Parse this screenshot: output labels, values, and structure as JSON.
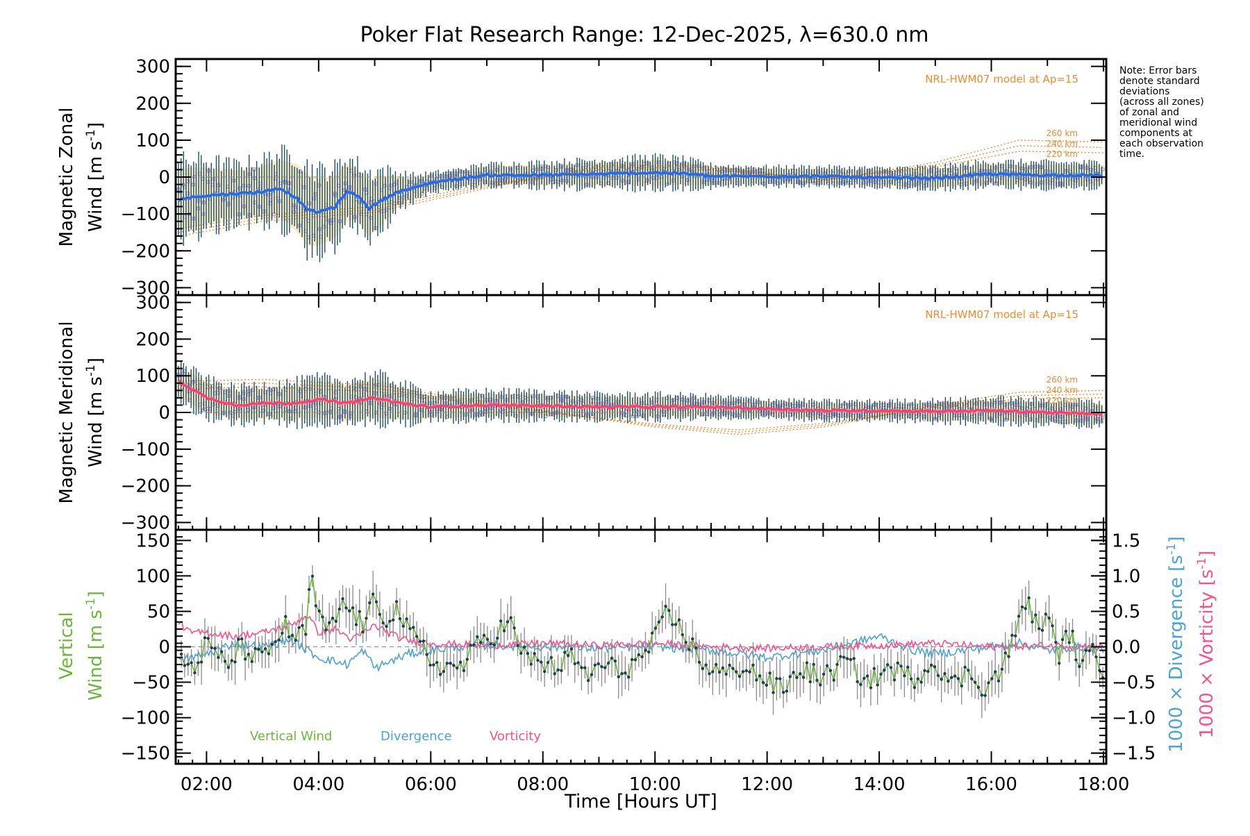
{
  "title": "Poker Flat Research Range: 12-Dec-2025, λ=630.0 nm",
  "note": [
    "Note: Error bars",
    "denote standard",
    "deviations",
    "(across all zones)",
    "of zonal and",
    "meridional wind",
    "components at",
    "each observation",
    "time."
  ],
  "colors": {
    "zonal": "#2a68e8",
    "zonal_light": "#4aa0d8",
    "meridional": "#ff3f6c",
    "hwm": "#f08a2a",
    "scatter": "#a89fd8",
    "errbar": "#1f4f5e",
    "vertical": "#6ab83a",
    "divergence": "#4aa3d6",
    "vorticity": "#ff4f88",
    "band": "#f5e3b8"
  },
  "chart_data": [
    {
      "type": "line",
      "name": "zonal-panel",
      "ylabel": [
        "Magnetic Zonal",
        "Wind [m s",
        "-1",
        "]"
      ],
      "ylim": [
        -320,
        320
      ],
      "xlim": [
        1.45,
        18.05
      ],
      "yticks": [
        300,
        200,
        100,
        0,
        -100,
        -200,
        -300
      ],
      "ytick_labels": [
        "300",
        "200",
        "100",
        "0",
        "−100",
        "−200",
        "−300"
      ],
      "model_label": "NRL-HWM07 model at Ap=15",
      "height_labels": [
        "260 km",
        "240 km",
        "220 km"
      ],
      "series": {
        "name": "Magnetic Zonal Wind",
        "x": [
          1.5,
          2.0,
          2.5,
          3.0,
          3.3,
          3.6,
          3.8,
          4.0,
          4.3,
          4.5,
          4.7,
          4.9,
          5.1,
          5.4,
          5.7,
          6.0,
          6.5,
          7.0,
          8.0,
          9.0,
          10.0,
          10.5,
          11.0,
          12.0,
          13.0,
          14.0,
          15.0,
          16.0,
          17.0,
          18.0
        ],
        "y": [
          -60,
          -50,
          -45,
          -40,
          -30,
          -55,
          -90,
          -95,
          -80,
          -40,
          -50,
          -85,
          -65,
          -40,
          -30,
          -15,
          -5,
          5,
          5,
          8,
          12,
          10,
          2,
          2,
          2,
          -2,
          -3,
          8,
          5,
          5
        ],
        "err": [
          120,
          110,
          90,
          100,
          110,
          130,
          140,
          130,
          120,
          110,
          100,
          110,
          100,
          60,
          40,
          30,
          30,
          35,
          40,
          45,
          50,
          45,
          35,
          30,
          30,
          30,
          35,
          40,
          40,
          40
        ]
      },
      "hwm_curves": [
        {
          "label": "260 km",
          "x": [
            1.5,
            3,
            5,
            7,
            9,
            11,
            13,
            15,
            16.5,
            18
          ],
          "y": [
            -160,
            -120,
            -95,
            -30,
            30,
            30,
            -10,
            40,
            100,
            95
          ]
        },
        {
          "label": "240 km",
          "x": [
            1.5,
            3,
            5,
            7,
            9,
            11,
            13,
            15,
            16.5,
            18
          ],
          "y": [
            -150,
            -112,
            -88,
            -25,
            25,
            25,
            -8,
            33,
            85,
            80
          ]
        },
        {
          "label": "220 km",
          "x": [
            1.5,
            3,
            5,
            7,
            9,
            11,
            13,
            15,
            16.5,
            18
          ],
          "y": [
            -140,
            -104,
            -80,
            -20,
            20,
            20,
            -6,
            27,
            70,
            66
          ]
        }
      ]
    },
    {
      "type": "line",
      "name": "meridional-panel",
      "ylabel": [
        "Magnetic Meridional",
        "Wind [m s",
        "-1",
        "]"
      ],
      "ylim": [
        -320,
        320
      ],
      "xlim": [
        1.45,
        18.05
      ],
      "yticks": [
        300,
        200,
        100,
        0,
        -100,
        -200,
        -300
      ],
      "ytick_labels": [
        "300",
        "200",
        "100",
        "0",
        "−100",
        "−200",
        "−300"
      ],
      "model_label": "NRL-HWM07 model at Ap=15",
      "height_labels": [
        "260 km",
        "240 km",
        "220 km"
      ],
      "series": {
        "name": "Magnetic Meridional Wind",
        "x": [
          1.5,
          2.0,
          2.5,
          3.0,
          3.5,
          4.0,
          4.5,
          5.0,
          5.3,
          5.7,
          6.0,
          7.0,
          8.0,
          9.0,
          10.0,
          11.0,
          12.0,
          13.0,
          14.0,
          15.0,
          16.0,
          17.0,
          18.0
        ],
        "y": [
          85,
          40,
          20,
          25,
          25,
          35,
          25,
          40,
          30,
          20,
          15,
          20,
          18,
          15,
          15,
          15,
          10,
          5,
          5,
          3,
          5,
          0,
          -5
        ],
        "err": [
          60,
          60,
          55,
          60,
          65,
          70,
          70,
          75,
          70,
          55,
          45,
          45,
          45,
          40,
          40,
          35,
          30,
          30,
          30,
          35,
          40,
          40,
          40
        ]
      },
      "hwm_curves": [
        {
          "label": "260 km",
          "x": [
            1.5,
            3,
            5,
            6.5,
            8,
            10,
            11.5,
            13,
            15,
            16.5,
            18
          ],
          "y": [
            85,
            90,
            75,
            40,
            5,
            -40,
            -60,
            -40,
            20,
            55,
            60
          ]
        },
        {
          "label": "240 km",
          "x": [
            1.5,
            3,
            5,
            6.5,
            8,
            10,
            11.5,
            13,
            15,
            16.5,
            18
          ],
          "y": [
            75,
            80,
            66,
            35,
            3,
            -36,
            -54,
            -35,
            16,
            46,
            50
          ]
        },
        {
          "label": "220 km",
          "x": [
            1.5,
            3,
            5,
            6.5,
            8,
            10,
            11.5,
            13,
            15,
            16.5,
            18
          ],
          "y": [
            65,
            70,
            57,
            30,
            1,
            -32,
            -48,
            -30,
            12,
            37,
            40
          ]
        }
      ]
    },
    {
      "type": "line",
      "name": "vertical-panel",
      "ylabel_green": [
        "Vertical",
        "Wind [m s",
        "-1",
        "]"
      ],
      "ylabel_right_blue": [
        "1000 × Divergence [s",
        "-1",
        "]"
      ],
      "ylabel_right_pink": [
        "1000 × Vorticity [s",
        "-1",
        "]"
      ],
      "ylim": [
        -165,
        165
      ],
      "yticks": [
        150,
        100,
        50,
        0,
        -50,
        -100,
        -150
      ],
      "ytick_labels": [
        "150",
        "100",
        "50",
        "0",
        "−50",
        "−100",
        "−150"
      ],
      "y2lim": [
        -1.65,
        1.65
      ],
      "y2ticks": [
        1.5,
        1.0,
        0.5,
        0.0,
        -0.5,
        -1.0,
        -1.5
      ],
      "y2tick_labels": [
        "1.5",
        "1.0",
        "0.5",
        "0.0",
        "−0.5",
        "−1.0",
        "−1.5"
      ],
      "xlim": [
        1.45,
        18.05
      ],
      "xticks": [
        2,
        4,
        6,
        8,
        10,
        12,
        14,
        16,
        18
      ],
      "xtick_labels": [
        "02:00",
        "04:00",
        "06:00",
        "08:00",
        "10:00",
        "12:00",
        "14:00",
        "16:00",
        "18:00"
      ],
      "xlabel": "Time [Hours UT]",
      "legend": [
        "Vertical Wind",
        "Divergence",
        "Vorticity"
      ],
      "vertical_wind": {
        "x": [
          1.6,
          1.8,
          2.0,
          2.2,
          2.4,
          2.6,
          2.8,
          3.0,
          3.2,
          3.4,
          3.6,
          3.8,
          3.85,
          4.0,
          4.2,
          4.4,
          4.6,
          4.8,
          5.0,
          5.2,
          5.4,
          5.6,
          5.8,
          6.0,
          6.3,
          6.6,
          6.9,
          7.2,
          7.4,
          7.6,
          7.9,
          8.2,
          8.5,
          8.8,
          9.1,
          9.4,
          9.7,
          10.0,
          10.2,
          10.4,
          10.6,
          10.8,
          11.0,
          11.3,
          11.6,
          12.0,
          12.3,
          12.6,
          13.0,
          13.4,
          13.8,
          14.2,
          14.6,
          15.0,
          15.3,
          15.6,
          15.9,
          16.2,
          16.4,
          16.6,
          16.8,
          17.0,
          17.2,
          17.4,
          17.6,
          17.8,
          18.0
        ],
        "y": [
          -20,
          -30,
          5,
          -15,
          -25,
          0,
          -10,
          -20,
          5,
          30,
          10,
          25,
          108,
          40,
          20,
          60,
          50,
          30,
          65,
          40,
          55,
          20,
          5,
          -20,
          -30,
          -25,
          10,
          20,
          40,
          -10,
          -20,
          -30,
          -15,
          -40,
          -25,
          -35,
          -20,
          10,
          45,
          30,
          10,
          -20,
          -30,
          -40,
          -25,
          -50,
          -60,
          -30,
          -45,
          -20,
          -50,
          -30,
          -45,
          -20,
          -55,
          -35,
          -60,
          -30,
          10,
          70,
          30,
          40,
          -10,
          20,
          -25,
          -10,
          -30
        ]
      },
      "divergence": {
        "x": [
          1.5,
          2.0,
          2.5,
          3.0,
          3.5,
          4.0,
          4.5,
          4.8,
          5.0,
          5.3,
          5.6,
          6.0,
          6.5,
          7.0,
          8.0,
          9.0,
          10.0,
          11.0,
          12.0,
          13.0,
          13.5,
          14.0,
          14.3,
          14.6,
          15.0,
          15.5,
          16.0,
          16.5,
          17.0,
          17.5,
          18.0
        ],
        "y": [
          -0.2,
          -0.1,
          0.05,
          0.0,
          0.1,
          -0.15,
          -0.25,
          -0.05,
          -0.3,
          -0.2,
          -0.1,
          -0.05,
          0.0,
          0.02,
          0.0,
          -0.02,
          0.0,
          -0.05,
          -0.15,
          -0.05,
          0.05,
          0.15,
          0.05,
          -0.05,
          -0.1,
          -0.05,
          0.0,
          0.05,
          -0.05,
          0.0,
          -0.05
        ]
      },
      "vorticity": {
        "x": [
          1.5,
          1.7,
          2.0,
          2.5,
          3.0,
          3.5,
          3.8,
          4.0,
          4.3,
          4.6,
          5.0,
          5.5,
          6.0,
          7.0,
          8.0,
          9.0,
          10.0,
          11.0,
          12.0,
          13.0,
          14.0,
          15.0,
          16.0,
          17.0,
          18.0
        ],
        "y": [
          0.35,
          0.2,
          0.2,
          0.15,
          0.2,
          0.3,
          0.45,
          0.2,
          0.25,
          0.1,
          0.3,
          0.1,
          0.05,
          0.02,
          0.05,
          0.02,
          0.05,
          0.0,
          -0.02,
          0.0,
          0.02,
          0.05,
          0.0,
          0.02,
          0.0
        ]
      }
    }
  ]
}
